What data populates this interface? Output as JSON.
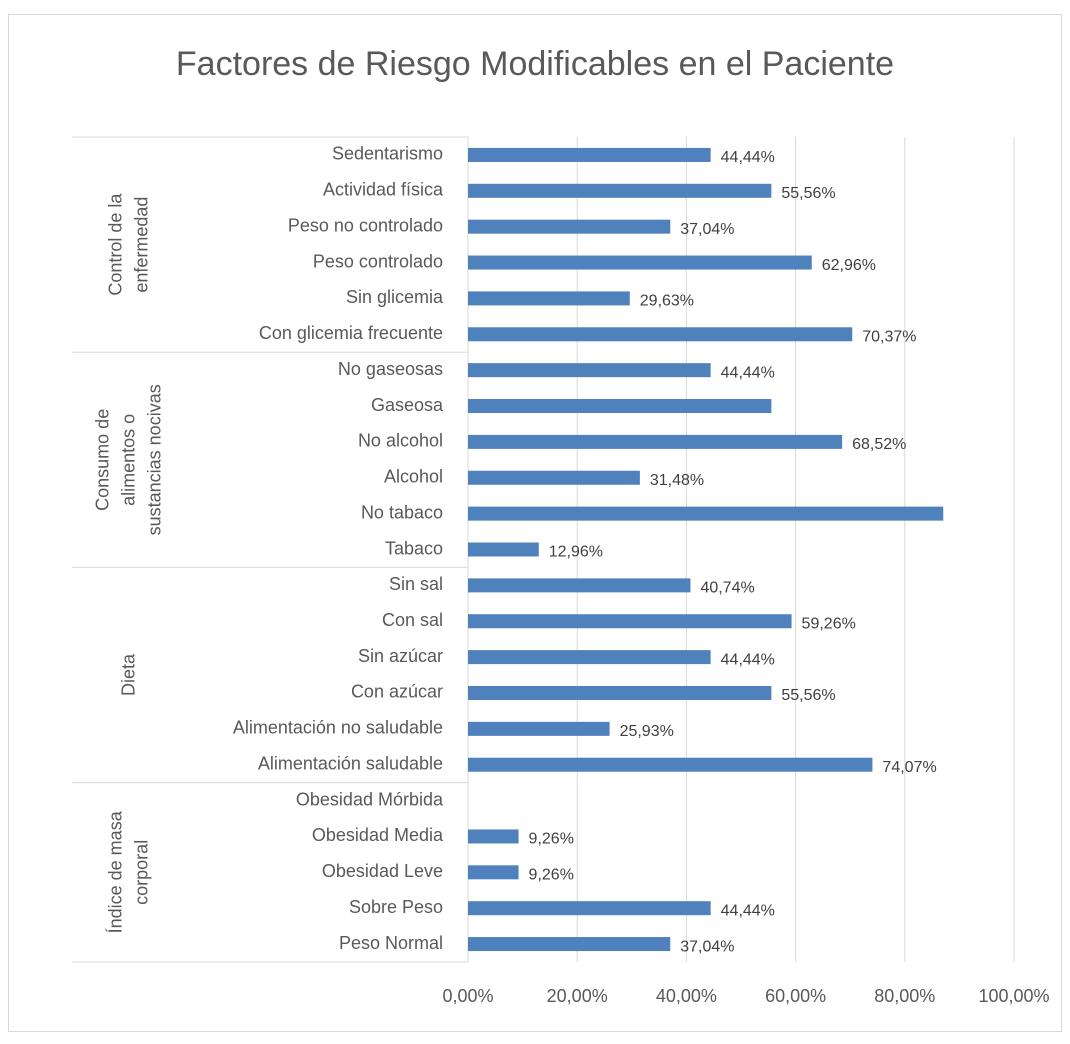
{
  "chart_data": {
    "type": "bar",
    "orientation": "horizontal",
    "title": "Factores de Riesgo Modificables en el Paciente",
    "color": "#4f81bd",
    "grid": true,
    "xlim": [
      0,
      100
    ],
    "xticks": [
      {
        "value": 0,
        "label": "0,00%"
      },
      {
        "value": 20,
        "label": "20,00%"
      },
      {
        "value": 40,
        "label": "40,00%"
      },
      {
        "value": 60,
        "label": "60,00%"
      },
      {
        "value": 80,
        "label": "80,00%"
      },
      {
        "value": 100,
        "label": "100,00%"
      }
    ],
    "groups": [
      {
        "lines": [
          "Control de la",
          "enfermedad"
        ],
        "categories": [
          "Sedentarismo",
          "Actividad física",
          "Peso no controlado",
          "Peso controlado",
          "Sin glicemia",
          "Con glicemia frecuente"
        ],
        "values": [
          44.44,
          55.56,
          37.04,
          62.96,
          29.63,
          70.37
        ],
        "value_labels": [
          "44,44%",
          "55,56%",
          "37,04%",
          "62,96%",
          "29,63%",
          "70,37%"
        ]
      },
      {
        "lines": [
          "Consumo de",
          "alimentos o",
          "sustancias nocivas"
        ],
        "categories": [
          "No gaseosas",
          "Gaseosa",
          "No alcohol",
          "Alcohol",
          "No tabaco",
          "Tabaco"
        ],
        "values": [
          44.44,
          55.56,
          68.52,
          31.48,
          87.04,
          12.96
        ],
        "value_labels": [
          "44,44%",
          null,
          "68,52%",
          "31,48%",
          null,
          "12,96%"
        ]
      },
      {
        "lines": [
          "Dieta"
        ],
        "categories": [
          "Sin sal",
          "Con sal",
          "Sin azúcar",
          "Con azúcar",
          "Alimentación no saludable",
          "Alimentación saludable"
        ],
        "values": [
          40.74,
          59.26,
          44.44,
          55.56,
          25.93,
          74.07
        ],
        "value_labels": [
          "40,74%",
          "59,26%",
          "44,44%",
          "55,56%",
          "25,93%",
          "74,07%"
        ]
      },
      {
        "lines": [
          "Índice de masa",
          "corporal"
        ],
        "categories": [
          "Obesidad Mórbida",
          "Obesidad Media",
          "Obesidad Leve",
          "Sobre Peso",
          "Peso Normal"
        ],
        "values": [
          0,
          9.26,
          9.26,
          44.44,
          37.04
        ],
        "value_labels": [
          null,
          "9,26%",
          "9,26%",
          "44,44%",
          "37,04%"
        ]
      }
    ]
  }
}
